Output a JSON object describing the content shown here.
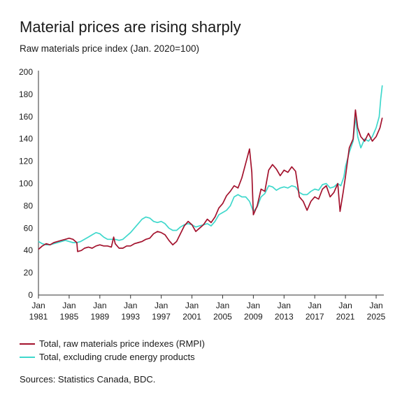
{
  "title": "Material prices are rising sharply",
  "subtitle": "Raw materials price index (Jan. 2020=100)",
  "source": "Sources: Statistics Canada, BDC.",
  "colors": {
    "series1": "#a3122d",
    "series2": "#3fd8cc",
    "axis": "#333333"
  },
  "chart_data": {
    "type": "line",
    "title": "Material prices are rising sharply",
    "ylabel": "Raw materials price index (Jan. 2020=100)",
    "xlabel": "",
    "xlim": [
      1981.0,
      2026.0
    ],
    "ylim": [
      0,
      200
    ],
    "yticks": [
      0,
      20,
      40,
      60,
      80,
      100,
      120,
      140,
      160,
      180,
      200
    ],
    "xticks": [
      {
        "value": 1981,
        "label1": "Jan",
        "label2": "1981"
      },
      {
        "value": 1985,
        "label1": "Jan",
        "label2": "1985"
      },
      {
        "value": 1989,
        "label1": "Jan",
        "label2": "1989"
      },
      {
        "value": 1993,
        "label1": "Jan",
        "label2": "1993"
      },
      {
        "value": 1997,
        "label1": "Jan",
        "label2": "1997"
      },
      {
        "value": 2001,
        "label1": "Jan",
        "label2": "2001"
      },
      {
        "value": 2005,
        "label1": "Jan",
        "label2": "2005"
      },
      {
        "value": 2009,
        "label1": "Jan",
        "label2": "2009"
      },
      {
        "value": 2013,
        "label1": "Jan",
        "label2": "2013"
      },
      {
        "value": 2017,
        "label1": "Jan",
        "label2": "2017"
      },
      {
        "value": 2021,
        "label1": "Jan",
        "label2": "2021"
      },
      {
        "value": 2025,
        "label1": "Jan",
        "label2": "2025"
      }
    ],
    "grid": false,
    "legend_position": "bottom",
    "series": [
      {
        "name": "Total, raw materials price indexes (RMPI)",
        "color": "#a3122d",
        "points": [
          [
            1981.0,
            41
          ],
          [
            1981.5,
            44
          ],
          [
            1982.0,
            46
          ],
          [
            1982.5,
            45
          ],
          [
            1983.0,
            47
          ],
          [
            1983.5,
            48
          ],
          [
            1984.0,
            49
          ],
          [
            1984.5,
            50
          ],
          [
            1985.0,
            51
          ],
          [
            1985.5,
            50
          ],
          [
            1986.0,
            47
          ],
          [
            1986.1,
            39
          ],
          [
            1986.6,
            40
          ],
          [
            1987.0,
            42
          ],
          [
            1987.5,
            43
          ],
          [
            1988.0,
            42
          ],
          [
            1988.5,
            44
          ],
          [
            1989.0,
            45
          ],
          [
            1989.5,
            44
          ],
          [
            1990.0,
            44
          ],
          [
            1990.5,
            43
          ],
          [
            1990.8,
            52
          ],
          [
            1991.0,
            46
          ],
          [
            1991.5,
            42
          ],
          [
            1992.0,
            42
          ],
          [
            1992.5,
            44
          ],
          [
            1993.0,
            44
          ],
          [
            1993.5,
            46
          ],
          [
            1994.0,
            47
          ],
          [
            1994.5,
            48
          ],
          [
            1995.0,
            50
          ],
          [
            1995.5,
            51
          ],
          [
            1996.0,
            55
          ],
          [
            1996.5,
            57
          ],
          [
            1997.0,
            56
          ],
          [
            1997.5,
            54
          ],
          [
            1998.0,
            49
          ],
          [
            1998.5,
            45
          ],
          [
            1999.0,
            48
          ],
          [
            1999.5,
            55
          ],
          [
            2000.0,
            62
          ],
          [
            2000.5,
            66
          ],
          [
            2001.0,
            63
          ],
          [
            2001.5,
            57
          ],
          [
            2002.0,
            60
          ],
          [
            2002.5,
            63
          ],
          [
            2003.0,
            68
          ],
          [
            2003.5,
            65
          ],
          [
            2004.0,
            70
          ],
          [
            2004.5,
            78
          ],
          [
            2005.0,
            82
          ],
          [
            2005.5,
            89
          ],
          [
            2006.0,
            93
          ],
          [
            2006.5,
            98
          ],
          [
            2007.0,
            96
          ],
          [
            2007.5,
            105
          ],
          [
            2008.0,
            118
          ],
          [
            2008.5,
            131
          ],
          [
            2008.8,
            110
          ],
          [
            2009.0,
            72
          ],
          [
            2009.5,
            80
          ],
          [
            2010.0,
            95
          ],
          [
            2010.5,
            93
          ],
          [
            2011.0,
            112
          ],
          [
            2011.5,
            117
          ],
          [
            2012.0,
            113
          ],
          [
            2012.5,
            107
          ],
          [
            2013.0,
            112
          ],
          [
            2013.5,
            110
          ],
          [
            2014.0,
            115
          ],
          [
            2014.5,
            111
          ],
          [
            2015.0,
            88
          ],
          [
            2015.5,
            84
          ],
          [
            2016.0,
            76
          ],
          [
            2016.5,
            84
          ],
          [
            2017.0,
            88
          ],
          [
            2017.5,
            86
          ],
          [
            2018.0,
            95
          ],
          [
            2018.5,
            98
          ],
          [
            2019.0,
            88
          ],
          [
            2019.5,
            92
          ],
          [
            2020.0,
            100
          ],
          [
            2020.3,
            75
          ],
          [
            2020.7,
            92
          ],
          [
            2021.0,
            106
          ],
          [
            2021.5,
            132
          ],
          [
            2022.0,
            140
          ],
          [
            2022.3,
            166
          ],
          [
            2022.6,
            150
          ],
          [
            2023.0,
            142
          ],
          [
            2023.5,
            138
          ],
          [
            2024.0,
            145
          ],
          [
            2024.5,
            138
          ],
          [
            2025.0,
            142
          ],
          [
            2025.5,
            150
          ],
          [
            2025.8,
            159
          ]
        ]
      },
      {
        "name": "Total, excluding crude energy products",
        "color": "#3fd8cc",
        "points": [
          [
            1981.0,
            48
          ],
          [
            1981.5,
            46
          ],
          [
            1982.0,
            45
          ],
          [
            1982.5,
            45
          ],
          [
            1983.0,
            46
          ],
          [
            1983.5,
            47
          ],
          [
            1984.0,
            48
          ],
          [
            1984.5,
            49
          ],
          [
            1985.0,
            48
          ],
          [
            1985.5,
            47
          ],
          [
            1986.0,
            47
          ],
          [
            1986.5,
            48
          ],
          [
            1987.0,
            50
          ],
          [
            1987.5,
            52
          ],
          [
            1988.0,
            54
          ],
          [
            1988.5,
            56
          ],
          [
            1989.0,
            55
          ],
          [
            1989.5,
            52
          ],
          [
            1990.0,
            50
          ],
          [
            1990.5,
            50
          ],
          [
            1991.0,
            50
          ],
          [
            1991.5,
            49
          ],
          [
            1992.0,
            50
          ],
          [
            1992.5,
            53
          ],
          [
            1993.0,
            56
          ],
          [
            1993.5,
            60
          ],
          [
            1994.0,
            64
          ],
          [
            1994.5,
            68
          ],
          [
            1995.0,
            70
          ],
          [
            1995.5,
            69
          ],
          [
            1996.0,
            66
          ],
          [
            1996.5,
            65
          ],
          [
            1997.0,
            66
          ],
          [
            1997.5,
            64
          ],
          [
            1998.0,
            60
          ],
          [
            1998.5,
            58
          ],
          [
            1999.0,
            58
          ],
          [
            1999.5,
            61
          ],
          [
            2000.0,
            63
          ],
          [
            2000.5,
            64
          ],
          [
            2001.0,
            63
          ],
          [
            2001.5,
            61
          ],
          [
            2002.0,
            62
          ],
          [
            2002.5,
            63
          ],
          [
            2003.0,
            64
          ],
          [
            2003.5,
            62
          ],
          [
            2004.0,
            66
          ],
          [
            2004.5,
            72
          ],
          [
            2005.0,
            74
          ],
          [
            2005.5,
            76
          ],
          [
            2006.0,
            80
          ],
          [
            2006.5,
            88
          ],
          [
            2007.0,
            90
          ],
          [
            2007.5,
            88
          ],
          [
            2008.0,
            88
          ],
          [
            2008.5,
            84
          ],
          [
            2009.0,
            75
          ],
          [
            2009.5,
            79
          ],
          [
            2010.0,
            88
          ],
          [
            2010.5,
            91
          ],
          [
            2011.0,
            98
          ],
          [
            2011.5,
            97
          ],
          [
            2012.0,
            94
          ],
          [
            2012.5,
            96
          ],
          [
            2013.0,
            97
          ],
          [
            2013.5,
            96
          ],
          [
            2014.0,
            98
          ],
          [
            2014.5,
            97
          ],
          [
            2015.0,
            92
          ],
          [
            2015.5,
            90
          ],
          [
            2016.0,
            90
          ],
          [
            2016.5,
            93
          ],
          [
            2017.0,
            95
          ],
          [
            2017.5,
            94
          ],
          [
            2018.0,
            99
          ],
          [
            2018.5,
            100
          ],
          [
            2019.0,
            96
          ],
          [
            2019.5,
            97
          ],
          [
            2020.0,
            100
          ],
          [
            2020.4,
            98
          ],
          [
            2020.8,
            106
          ],
          [
            2021.0,
            115
          ],
          [
            2021.5,
            128
          ],
          [
            2022.0,
            138
          ],
          [
            2022.3,
            160
          ],
          [
            2022.6,
            142
          ],
          [
            2023.0,
            132
          ],
          [
            2023.5,
            140
          ],
          [
            2024.0,
            138
          ],
          [
            2024.5,
            142
          ],
          [
            2025.0,
            150
          ],
          [
            2025.4,
            160
          ],
          [
            2025.6,
            176
          ],
          [
            2025.8,
            188
          ]
        ]
      }
    ]
  }
}
